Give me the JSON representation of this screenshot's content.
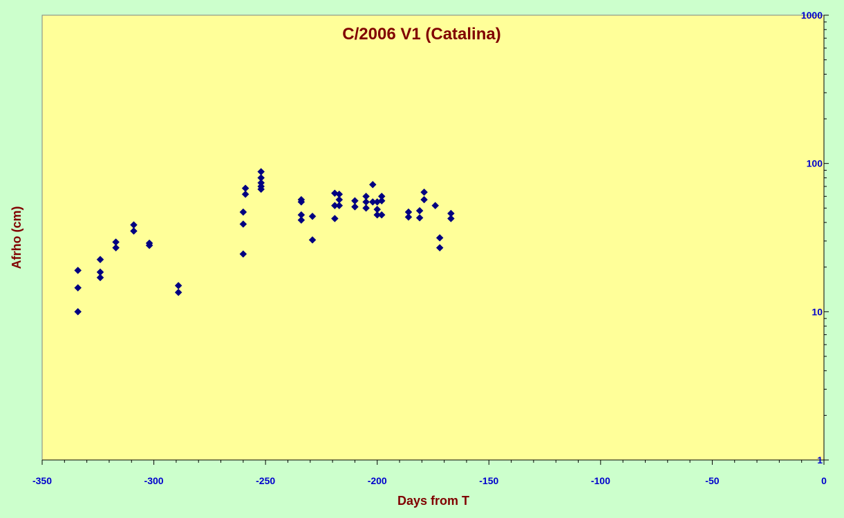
{
  "chart_data": {
    "type": "scatter",
    "title": "C/2006 V1 (Catalina)",
    "xlabel": "Days from T",
    "ylabel": "Afrho (cm)",
    "xlim": [
      -350,
      0
    ],
    "ylim": [
      1,
      1000
    ],
    "y_scale": "log",
    "x_ticks": [
      -350,
      -300,
      -250,
      -200,
      -150,
      -100,
      -50,
      0
    ],
    "x_tick_labels": [
      "-350",
      "-300",
      "-250",
      "-200",
      "-150",
      "-100",
      "-50",
      "0"
    ],
    "y_ticks": [
      1,
      10,
      100,
      1000
    ],
    "y_tick_labels": [
      "1",
      "10",
      "100",
      "1000"
    ],
    "y_axis_side": "right",
    "grid": false,
    "legend": "none",
    "colors": {
      "plot_background": "#ffff99",
      "page_background": "#ccffcc",
      "marker": "#000080",
      "title_text": "#800000",
      "tick_text": "#0000cc"
    },
    "marker": "diamond",
    "series": [
      {
        "points": [
          [
            -334,
            19
          ],
          [
            -334,
            14.5
          ],
          [
            -334,
            10
          ],
          [
            -324,
            22.5
          ],
          [
            -324,
            18.5
          ],
          [
            -324,
            17
          ],
          [
            -317,
            29.5
          ],
          [
            -317,
            27
          ],
          [
            -309,
            38.5
          ],
          [
            -309,
            35
          ],
          [
            -302,
            29
          ],
          [
            -302,
            28
          ],
          [
            -289,
            15
          ],
          [
            -289,
            13.5
          ],
          [
            -260,
            47
          ],
          [
            -260,
            39
          ],
          [
            -260,
            24.5
          ],
          [
            -259,
            68
          ],
          [
            -259,
            62
          ],
          [
            -252,
            88
          ],
          [
            -252,
            80
          ],
          [
            -252,
            74
          ],
          [
            -252,
            70
          ],
          [
            -252,
            67
          ],
          [
            -234,
            57
          ],
          [
            -234,
            55
          ],
          [
            -234,
            45
          ],
          [
            -234,
            41.5
          ],
          [
            -229,
            44
          ],
          [
            -229,
            30.5
          ],
          [
            -219,
            63
          ],
          [
            -219,
            52
          ],
          [
            -219,
            42.5
          ],
          [
            -217,
            62
          ],
          [
            -217,
            57
          ],
          [
            -217,
            52
          ],
          [
            -210,
            56
          ],
          [
            -210,
            51
          ],
          [
            -205,
            60
          ],
          [
            -205,
            55
          ],
          [
            -205,
            50
          ],
          [
            -202,
            72
          ],
          [
            -202,
            55
          ],
          [
            -200,
            55
          ],
          [
            -200,
            49
          ],
          [
            -200,
            45
          ],
          [
            -198,
            60
          ],
          [
            -198,
            56
          ],
          [
            -198,
            45
          ],
          [
            -186,
            47
          ],
          [
            -186,
            43.5
          ],
          [
            -181,
            48
          ],
          [
            -181,
            43
          ],
          [
            -179,
            64
          ],
          [
            -179,
            57
          ],
          [
            -174,
            52
          ],
          [
            -172,
            31.5
          ],
          [
            -172,
            27
          ],
          [
            -167,
            46
          ],
          [
            -167,
            42.5
          ]
        ]
      }
    ]
  }
}
